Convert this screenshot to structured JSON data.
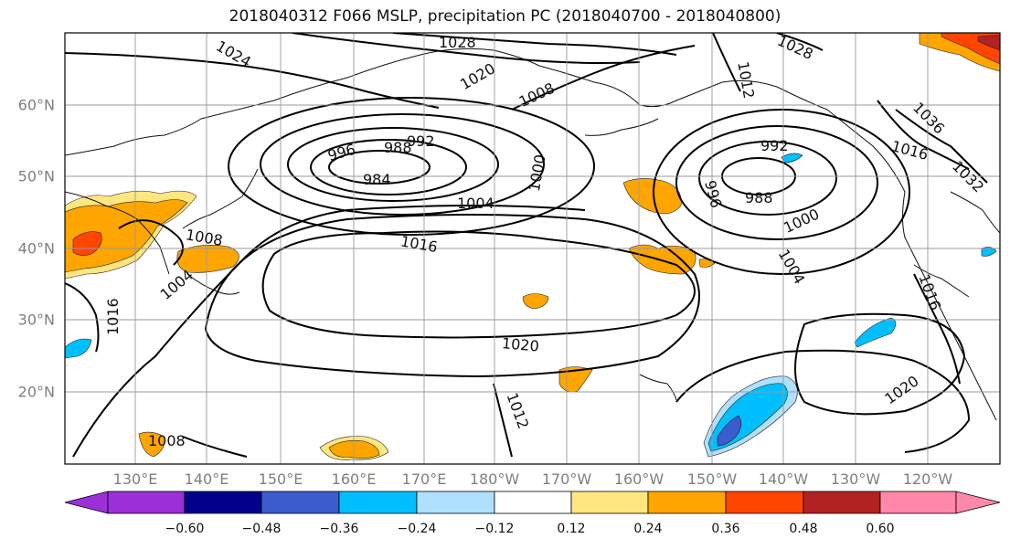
{
  "title": "2018040312 F066 MSLP, precipitation PC (2018040700 - 2018040800)",
  "lat_labels": [
    "60°N",
    "50°N",
    "40°N",
    "30°N",
    "20°N"
  ],
  "lon_labels": [
    "130°E",
    "140°E",
    "150°E",
    "160°E",
    "170°E",
    "180°W",
    "170°W",
    "160°W",
    "150°W",
    "140°W",
    "130°W",
    "120°W"
  ],
  "colorbar": {
    "ticks": [
      "−0.60",
      "−0.48",
      "−0.36",
      "−0.24",
      "−0.12",
      "0.12",
      "0.24",
      "0.36",
      "0.48",
      "0.60"
    ],
    "colors": [
      "#9b30d9",
      "#00008b",
      "#3a5ccc",
      "#00bfff",
      "#b0e0ff",
      "#ffffff",
      "#ffe680",
      "#ffa500",
      "#ff4500",
      "#b22222",
      "#ff88aa"
    ]
  },
  "contour_labels": [
    "1024",
    "1028",
    "1020",
    "1008",
    "1012",
    "1028",
    "1036",
    "1016",
    "1032",
    "996",
    "988",
    "992",
    "984",
    "1000",
    "1004",
    "992",
    "996",
    "988",
    "1000",
    "1004",
    "1016",
    "1008",
    "1004",
    "1016",
    "1016",
    "1020",
    "1012",
    "1020",
    "1008"
  ]
}
